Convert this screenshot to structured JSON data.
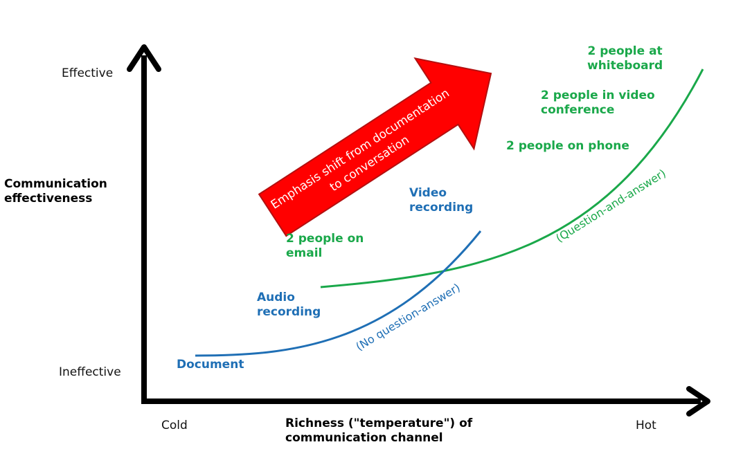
{
  "colors": {
    "axis": "#000000",
    "green": "#1aa84a",
    "blue": "#1f6fb5",
    "arrow_fill": "#ff0000",
    "arrow_stroke": "#b31010"
  },
  "y_axis": {
    "top_label": "Effective",
    "bottom_label": "Ineffective",
    "title_line1": "Communication",
    "title_line2": "effectiveness"
  },
  "x_axis": {
    "left_label": "Cold",
    "right_label": "Hot",
    "title_line1": "Richness (\"temperature\") of",
    "title_line2": "communication channel"
  },
  "emphasis_arrow": {
    "line1": "Emphasis shift from documentation",
    "line2": "to conversation"
  },
  "paper_curve": {
    "note": "(No question-answer)",
    "labels": {
      "document": "Document",
      "audio_line1": "Audio",
      "audio_line2": "recording",
      "video_line1": "Video",
      "video_line2": "recording"
    }
  },
  "interactive_curve": {
    "note": "(Question-and-answer)",
    "labels": {
      "email_line1": "2 people on",
      "email_line2": "email",
      "phone": "2 people on phone",
      "video_conf_line1": "2 people in video",
      "video_conf_line2": "conference",
      "whiteboard_line1": "2 people at",
      "whiteboard_line2": "whiteboard"
    }
  }
}
